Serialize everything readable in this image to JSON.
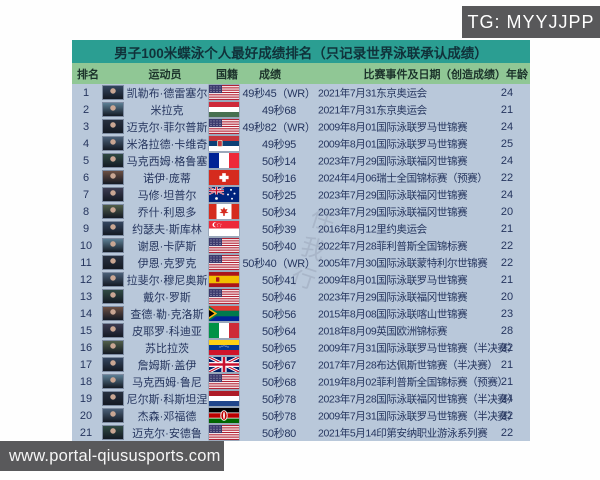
{
  "tg_badge": "TG: MYYJJPP",
  "watermark_url": "www.portal-qiususports.com",
  "watermark_diagonal": "任我行",
  "colors": {
    "title_bg": "#2b9e92",
    "header_bg": "#90c795",
    "body_bg": "#b9c8da",
    "badge_bg": "#58585a",
    "text": "#25355e"
  },
  "table": {
    "title": "男子100米蝶泳个人最好成绩排名（只记录世界泳联承认成绩）",
    "columns": [
      "排名",
      "运动员",
      "国籍",
      "成绩",
      "比赛事件及日期",
      "（创造成绩）年龄"
    ],
    "rows": [
      {
        "rank": "1",
        "name": "凯勒布·德雷塞尔",
        "flag": "us",
        "flag_name": "usa",
        "result": "49秒45（WR）",
        "event": "2021年7月31东京奥运会",
        "age": "24"
      },
      {
        "rank": "2",
        "name": "米拉克",
        "flag": "hu",
        "flag_name": "hungary",
        "result": "49秒68",
        "event": "2021年7月31东京奥运会",
        "age": "21"
      },
      {
        "rank": "3",
        "name": "迈克尔·菲尔普斯",
        "flag": "us",
        "flag_name": "usa",
        "result": "49秒82（WR）",
        "event": "2009年8月01国际泳联罗马世锦赛",
        "age": "24"
      },
      {
        "rank": "4",
        "name": "米洛拉德·卡维奇",
        "flag": "rs",
        "flag_name": "serbia",
        "result": "49秒95",
        "event": "2009年8月01国际泳联罗马世锦赛",
        "age": "25"
      },
      {
        "rank": "5",
        "name": "马克西姆·格鲁塞",
        "flag": "fr",
        "flag_name": "france",
        "result": "50秒14",
        "event": "2023年7月29国际泳联福冈世锦赛",
        "age": "24"
      },
      {
        "rank": "6",
        "name": "诺伊·庞蒂",
        "flag": "ch",
        "flag_name": "switzerland",
        "result": "50秒16",
        "event": "2024年4月06瑞士全国锦标赛（预赛）",
        "age": "22"
      },
      {
        "rank": "7",
        "name": "马修·坦普尔",
        "flag": "au",
        "flag_name": "australia",
        "result": "50秒25",
        "event": "2023年7月29国际泳联福冈世锦赛",
        "age": "24"
      },
      {
        "rank": "8",
        "name": "乔什·利恩多",
        "flag": "ca",
        "flag_name": "canada",
        "result": "50秒34",
        "event": "2023年7月29国际泳联福冈世锦赛",
        "age": "20"
      },
      {
        "rank": "9",
        "name": "约瑟夫·斯库林",
        "flag": "sg",
        "flag_name": "singapore",
        "result": "50秒39",
        "event": "2016年8月12里约奥运会",
        "age": "21"
      },
      {
        "rank": "10",
        "name": "谢恩·卡萨斯",
        "flag": "us",
        "flag_name": "usa",
        "result": "50秒40",
        "event": "2022年7月28菲利普斯全国锦标赛",
        "age": "22"
      },
      {
        "rank": "11",
        "name": "伊恩·克罗克",
        "flag": "us",
        "flag_name": "usa",
        "result": "50秒40（WR）",
        "event": "2005年7月30国际泳联蒙特利尔世锦赛",
        "age": "22"
      },
      {
        "rank": "12",
        "name": "拉斐尔·穆尼奥斯",
        "flag": "es",
        "flag_name": "spain",
        "result": "50秒41",
        "event": "2009年8月01国际泳联罗马世锦赛",
        "age": "21"
      },
      {
        "rank": "13",
        "name": "戴尔·罗斯",
        "flag": "us",
        "flag_name": "usa",
        "result": "50秒46",
        "event": "2023年7月29国际泳联福冈世锦赛",
        "age": "20"
      },
      {
        "rank": "14",
        "name": "查德·勒·克洛斯",
        "flag": "za",
        "flag_name": "south-africa",
        "result": "50秒56",
        "event": "2015年8月08国际泳联喀山世锦赛",
        "age": "23"
      },
      {
        "rank": "15",
        "name": "皮耶罗·科迪亚",
        "flag": "it",
        "flag_name": "italy",
        "result": "50秒64",
        "event": "2018年8月09英国欧洲锦标赛",
        "age": "28"
      },
      {
        "rank": "16",
        "name": "苏比拉茨",
        "flag": "ve",
        "flag_name": "venezuela",
        "result": "50秒65",
        "event": "2009年7月31国际泳联罗马世锦赛（半决赛）",
        "age": "22"
      },
      {
        "rank": "17",
        "name": "詹姆斯·盖伊",
        "flag": "gb",
        "flag_name": "united-kingdom",
        "result": "50秒67",
        "event": "2017年7月28布达佩斯世锦赛（半决赛）",
        "age": "21"
      },
      {
        "rank": "18",
        "name": "马克西姆·鲁尼",
        "flag": "us",
        "flag_name": "usa",
        "result": "50秒68",
        "event": "2019年8月02菲利普斯全国锦标赛（预赛）",
        "age": "21"
      },
      {
        "rank": "19",
        "name": "尼尔斯·科斯坦涅",
        "flag": "nl",
        "flag_name": "netherlands",
        "result": "50秒78",
        "event": "2023年7月28国际泳联福冈世锦赛（半决赛）",
        "age": "24"
      },
      {
        "rank": "20",
        "name": "杰森·邓福德",
        "flag": "ke",
        "flag_name": "kenya",
        "result": "50秒78",
        "event": "2009年7月31国际泳联罗马世锦赛（半决赛）",
        "age": "22"
      },
      {
        "rank": "21",
        "name": "迈克尔·安德鲁",
        "flag": "us",
        "flag_name": "usa",
        "result": "50秒80",
        "event": "2021年5月14印第安纳职业游泳系列赛",
        "age": "22"
      }
    ]
  }
}
